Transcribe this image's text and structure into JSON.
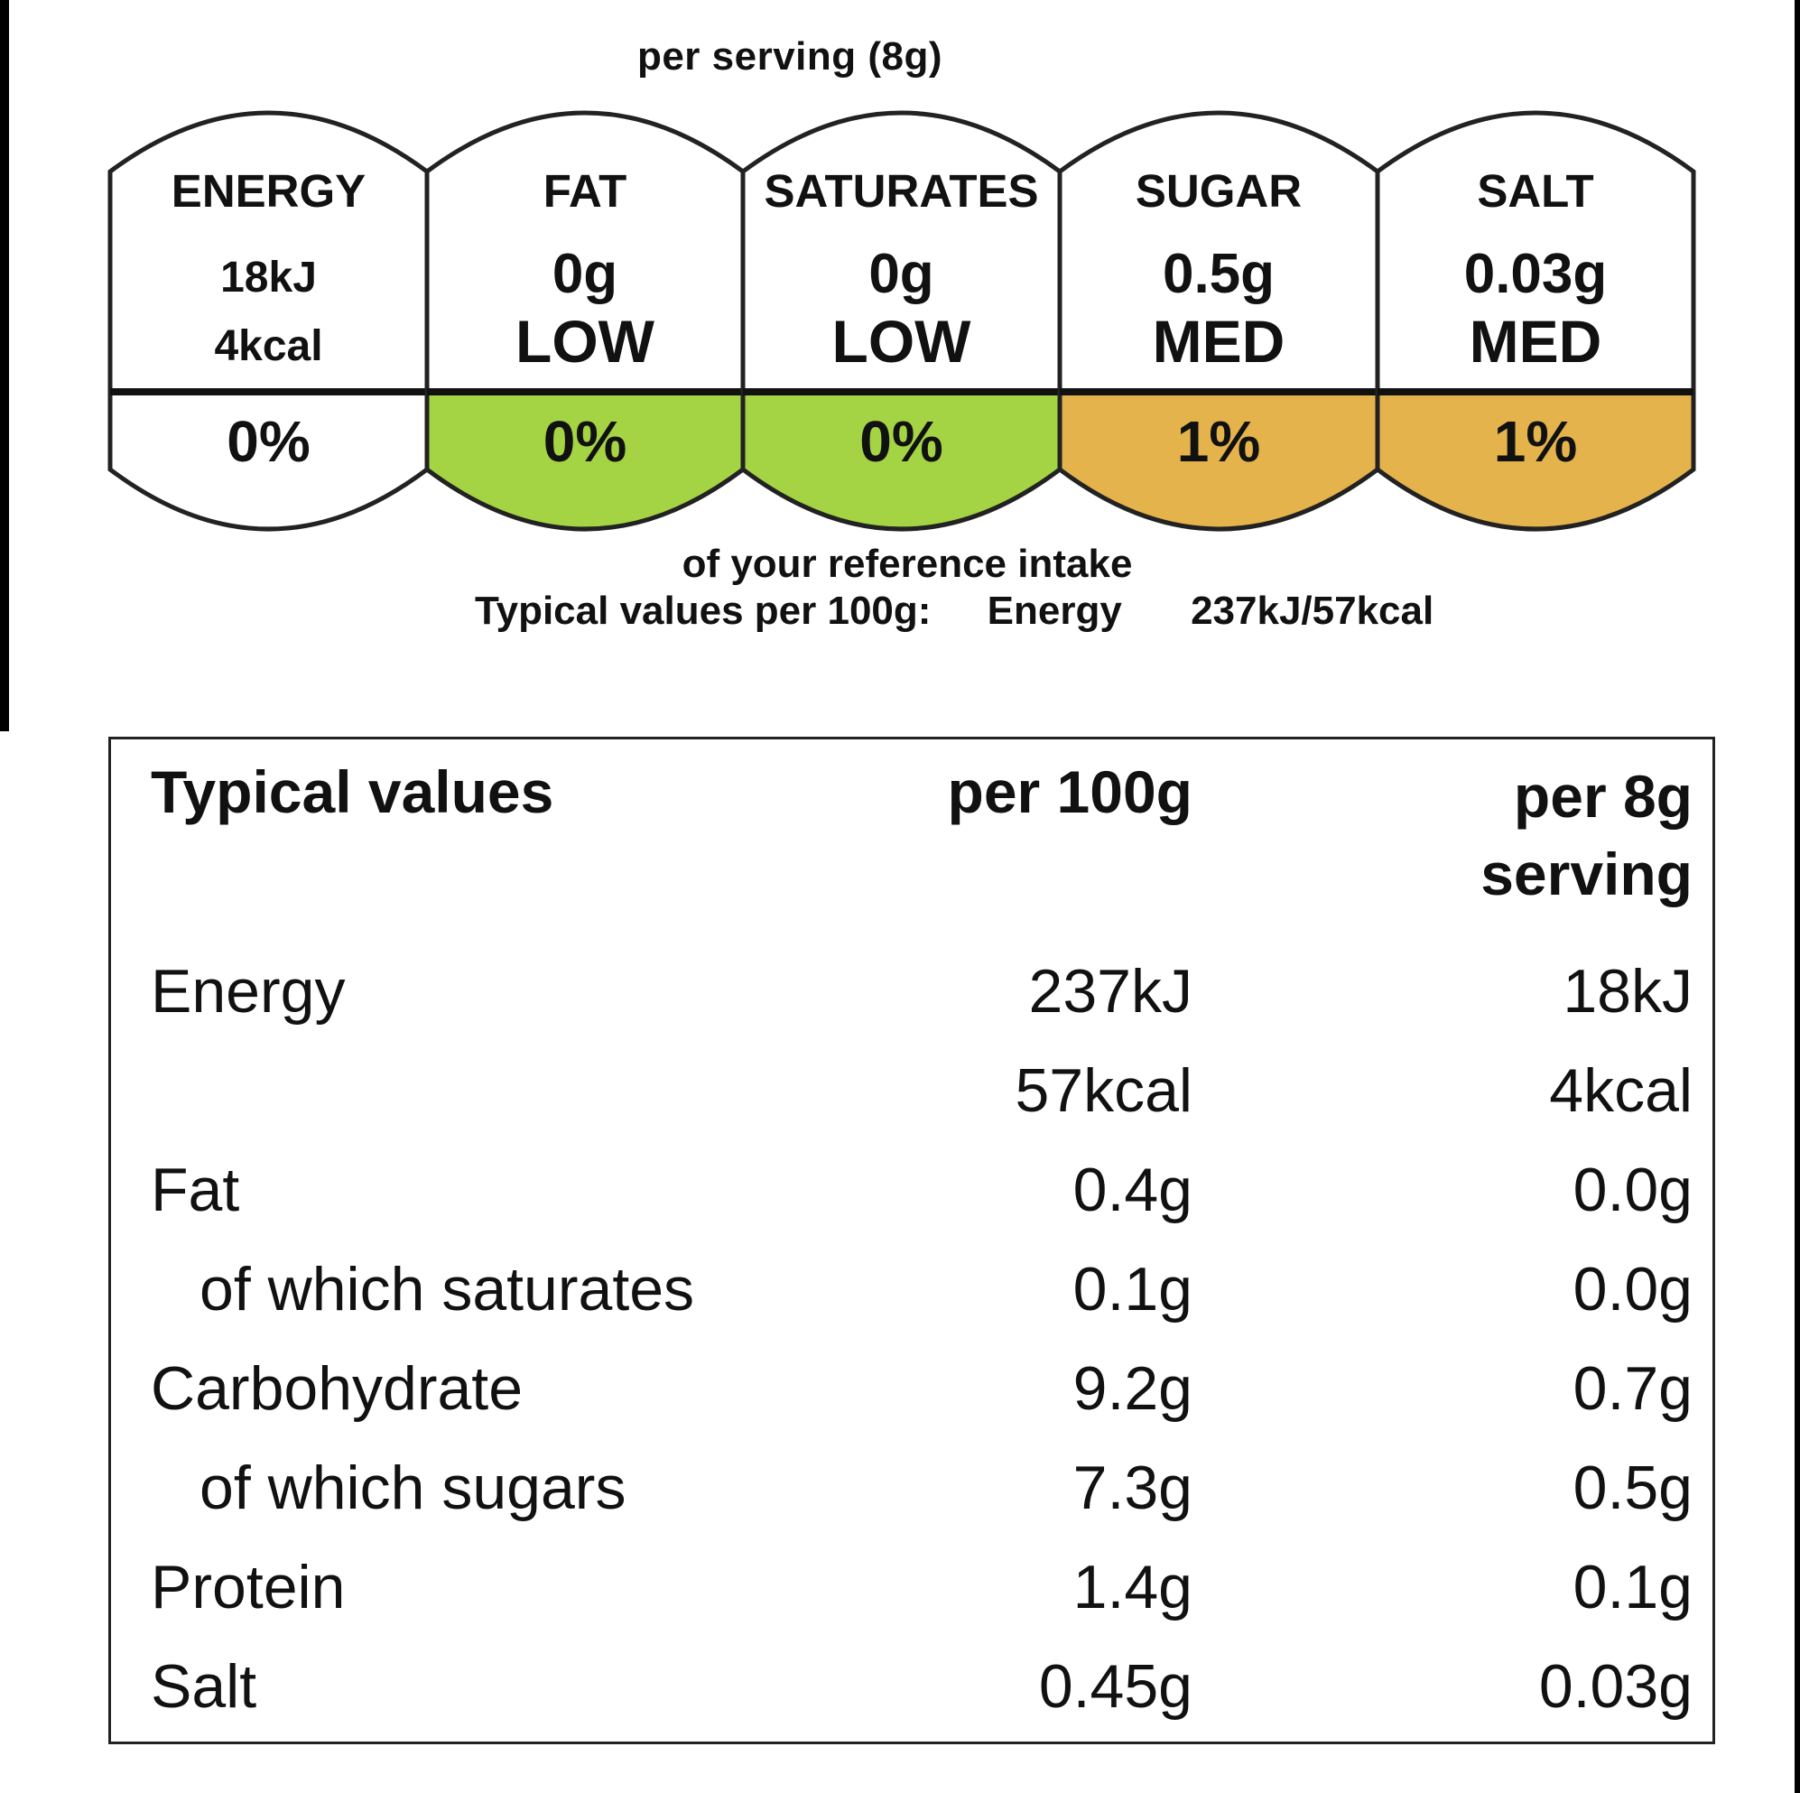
{
  "serving_header": "per serving  (8g)",
  "gda": [
    {
      "label": "ENERGY",
      "amounts": [
        "18kJ",
        "4kcal"
      ],
      "level": "",
      "percent": "0%",
      "fill": "#ffffff"
    },
    {
      "label": "FAT",
      "amounts": [
        "0g"
      ],
      "level": "LOW",
      "percent": "0%",
      "fill": "#a4d444"
    },
    {
      "label": "SATURATES",
      "amounts": [
        "0g"
      ],
      "level": "LOW",
      "percent": "0%",
      "fill": "#a4d444"
    },
    {
      "label": "SUGAR",
      "amounts": [
        "0.5g"
      ],
      "level": "MED",
      "percent": "1%",
      "fill": "#e5b34c"
    },
    {
      "label": "SALT",
      "amounts": [
        "0.03g"
      ],
      "level": "MED",
      "percent": "1%",
      "fill": "#e5b34c"
    }
  ],
  "reference_intake_text": "of your reference intake",
  "typical_line": {
    "label": "Typical values per 100g:",
    "nutrient": "Energy",
    "value": "237kJ/57kcal"
  },
  "table": {
    "headers": {
      "name": "Typical values",
      "per100": "per 100g",
      "serving_line1": "per 8g",
      "serving_line2": "serving"
    },
    "rows": [
      {
        "name": "Energy",
        "per100": "237kJ",
        "serving": "18kJ",
        "indent": false
      },
      {
        "name": "",
        "per100": "57kcal",
        "serving": "4kcal",
        "indent": false
      },
      {
        "name": "Fat",
        "per100": "0.4g",
        "serving": "0.0g",
        "indent": false
      },
      {
        "name": "of which saturates",
        "per100": "0.1g",
        "serving": "0.0g",
        "indent": true
      },
      {
        "name": "Carbohydrate",
        "per100": "9.2g",
        "serving": "0.7g",
        "indent": false
      },
      {
        "name": "of which sugars",
        "per100": "7.3g",
        "serving": "0.5g",
        "indent": true
      },
      {
        "name": "Protein",
        "per100": "1.4g",
        "serving": "0.1g",
        "indent": false
      },
      {
        "name": "Salt",
        "per100": "0.45g",
        "serving": "0.03g",
        "indent": false
      }
    ]
  }
}
